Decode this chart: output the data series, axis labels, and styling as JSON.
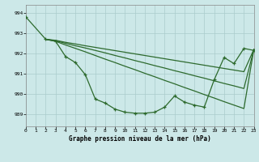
{
  "title": "Graphe pression niveau de la mer (hPa)",
  "bg_color": "#cce8e8",
  "grid_color": "#aacccc",
  "line_color": "#2d6a2d",
  "x_ticks": [
    0,
    1,
    2,
    3,
    4,
    5,
    6,
    7,
    8,
    9,
    10,
    11,
    12,
    13,
    14,
    15,
    16,
    17,
    18,
    19,
    20,
    21,
    22,
    23
  ],
  "y_ticks": [
    989,
    990,
    991,
    992,
    993,
    994
  ],
  "ylim": [
    988.4,
    994.4
  ],
  "xlim": [
    0,
    23
  ],
  "series": [
    {
      "x": [
        0,
        2,
        3,
        4,
        5,
        6,
        7,
        8,
        9,
        10,
        11,
        12,
        13,
        14,
        15,
        16,
        17,
        18,
        19,
        20,
        21,
        22,
        23
      ],
      "y": [
        993.8,
        992.7,
        992.6,
        991.85,
        991.55,
        990.95,
        989.75,
        989.55,
        989.25,
        989.1,
        989.05,
        989.05,
        989.1,
        989.35,
        989.9,
        989.6,
        989.45,
        989.35,
        990.7,
        991.8,
        991.5,
        992.25,
        992.15
      ],
      "marker": true
    },
    {
      "x": [
        2,
        3,
        4,
        5,
        6,
        7,
        8,
        9,
        10,
        11,
        12,
        13,
        14,
        15,
        16,
        17,
        18,
        19,
        20,
        21,
        22,
        23
      ],
      "y": [
        992.7,
        992.65,
        992.55,
        992.47,
        992.38,
        992.3,
        992.22,
        992.14,
        992.06,
        991.98,
        991.9,
        991.82,
        991.74,
        991.66,
        991.58,
        991.5,
        991.42,
        991.34,
        991.26,
        991.18,
        991.1,
        992.2
      ],
      "marker": false
    },
    {
      "x": [
        2,
        3,
        4,
        5,
        6,
        7,
        8,
        9,
        10,
        11,
        12,
        13,
        14,
        15,
        16,
        17,
        18,
        19,
        20,
        21,
        22,
        23
      ],
      "y": [
        992.7,
        992.63,
        992.5,
        992.38,
        992.27,
        992.15,
        992.03,
        991.9,
        991.78,
        991.65,
        991.53,
        991.4,
        991.28,
        991.15,
        991.03,
        990.9,
        990.78,
        990.65,
        990.52,
        990.4,
        990.27,
        992.2
      ],
      "marker": false
    },
    {
      "x": [
        2,
        3,
        4,
        5,
        6,
        7,
        8,
        9,
        10,
        11,
        12,
        13,
        14,
        15,
        16,
        17,
        18,
        19,
        20,
        21,
        22,
        23
      ],
      "y": [
        992.7,
        992.6,
        992.42,
        992.25,
        992.08,
        991.9,
        991.72,
        991.55,
        991.37,
        991.2,
        991.02,
        990.85,
        990.67,
        990.5,
        990.32,
        990.15,
        989.97,
        989.8,
        989.62,
        989.45,
        989.28,
        992.2
      ],
      "marker": false
    }
  ]
}
